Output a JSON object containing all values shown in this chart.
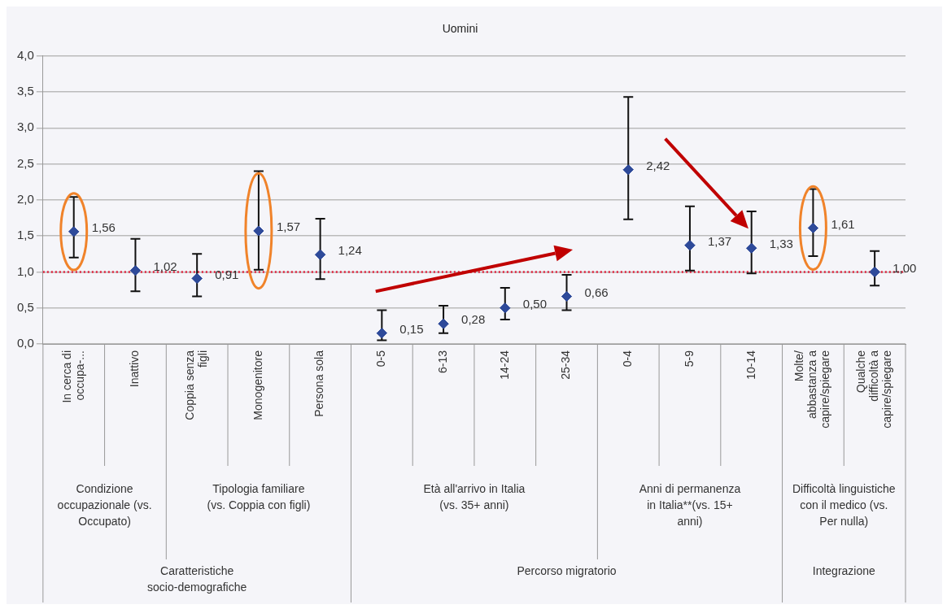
{
  "chart_data": {
    "type": "scatter",
    "title": "Uomini",
    "categories": [
      "In cerca di occupa-...",
      "Inattivo",
      "Coppia senza figli",
      "Monogenitore",
      "Persona sola",
      "0-5",
      "6-13",
      "14-24",
      "25-34",
      "0-4",
      "5-9",
      "10-14",
      "Molte/ abbastanza a capire/spiegare",
      "Qualche difficoltà a capire/spiegare"
    ],
    "series": [
      {
        "color": "#2e4a9a",
        "values": [
          1.56,
          1.02,
          0.91,
          1.57,
          1.24,
          0.15,
          0.28,
          0.5,
          0.66,
          2.42,
          1.37,
          1.33,
          1.61,
          1.0
        ],
        "errors": [
          [
            1.2,
            2.04
          ],
          [
            0.73,
            1.46
          ],
          [
            0.66,
            1.25
          ],
          [
            1.03,
            2.4
          ],
          [
            0.9,
            1.74
          ],
          [
            0.05,
            0.47
          ],
          [
            0.15,
            0.53
          ],
          [
            0.34,
            0.78
          ],
          [
            0.47,
            0.96
          ],
          [
            1.73,
            3.43
          ],
          [
            1.02,
            1.91
          ],
          [
            0.98,
            1.84
          ],
          [
            1.22,
            2.15
          ],
          [
            0.81,
            1.29
          ]
        ],
        "value_labels": [
          "1,56",
          "1,02",
          "0,91",
          "1,57",
          "1,24",
          "0,15",
          "0,28",
          "0,50",
          "0,66",
          "2,42",
          "1,37",
          "1,33",
          "1,61",
          "1,00"
        ]
      }
    ],
    "ylim": [
      0,
      4
    ],
    "yticks": [
      {
        "value": 0,
        "label": "0,0"
      },
      {
        "value": 0.5,
        "label": "0,5"
      },
      {
        "value": 1,
        "label": "1,0"
      },
      {
        "value": 1.5,
        "label": "1,5"
      },
      {
        "value": 2,
        "label": "2,0"
      },
      {
        "value": 2.5,
        "label": "2,5"
      },
      {
        "value": 3,
        "label": "3,0"
      },
      {
        "value": 3.5,
        "label": "3,5"
      },
      {
        "value": 4,
        "label": "4,0"
      }
    ],
    "grid": "y",
    "marker": "diamond",
    "legend": false,
    "ref_lines": [
      {
        "axis": "y",
        "value": 1,
        "color": "#e0203c",
        "line_style": "dotted"
      }
    ],
    "annotations": [
      "Condizione occupazionale (vs. Occupato)",
      "Tipologia familiare (vs. Coppia con figli)",
      "Età all'arrivo in Italia (vs. 35+ anni)",
      "Anni di permanenza in Italia**(vs. 15+ anni)",
      "Difficoltà linguistiche con il medico (vs. Per nulla)",
      "Caratteristiche socio-demografiche",
      "Percorso migratorio",
      "Integrazione"
    ]
  }
}
